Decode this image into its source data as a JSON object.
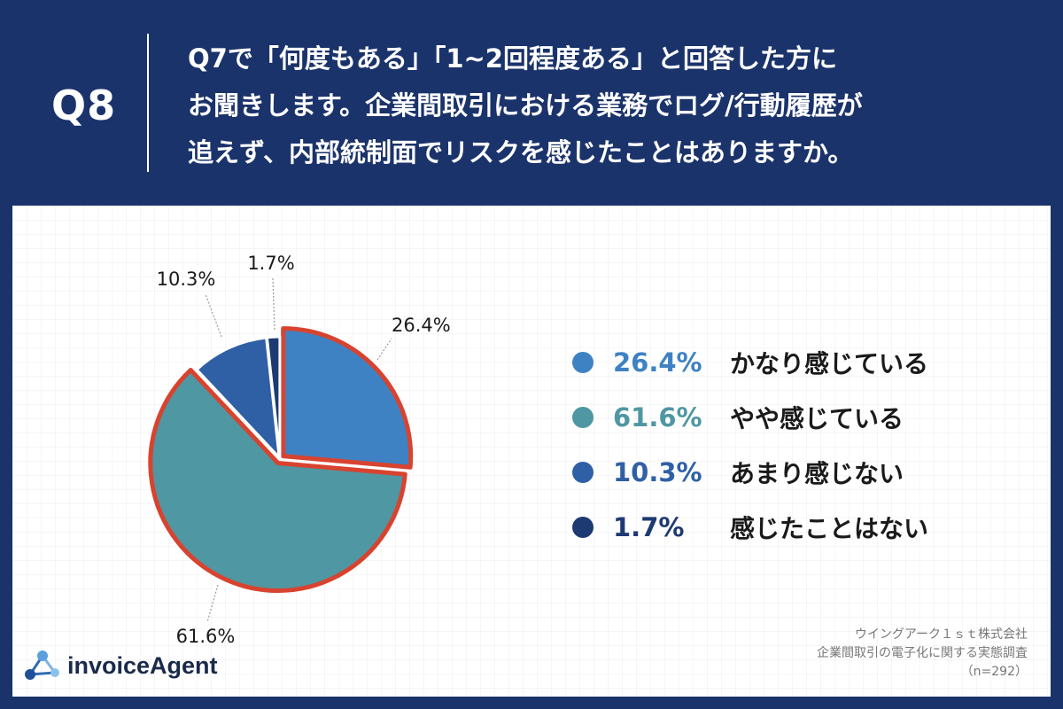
{
  "header": {
    "question_number": "Q8",
    "question_lines": [
      "Q7で「何度もある」「1~2回程度ある」と回答した方に",
      "お聞きします。企業間取引における業務でログ/行動履歴が",
      "追えず、内部統制面でリスクを感じたことはありますか。"
    ]
  },
  "chart_data": {
    "type": "pie",
    "title": "",
    "categories": [
      "かなり感じている",
      "やや感じている",
      "あまり感じない",
      "感じたことはない"
    ],
    "values": [
      26.4,
      61.6,
      10.3,
      1.7
    ],
    "unit": "%",
    "data_labels": [
      "26.4%",
      "61.6%",
      "10.3%",
      "1.7%"
    ],
    "colors": [
      "#3e82c3",
      "#4f97a2",
      "#2f60a6",
      "#1e3a73"
    ],
    "start_angle_deg": 0,
    "direction": "clockwise",
    "highlight_outline_color": "#d8432f",
    "highlight_slices": [
      0,
      1
    ],
    "legend_placement": "right"
  },
  "legend": [
    {
      "pct": "26.4%",
      "label": "かなり感じている",
      "color": "#3e82c3"
    },
    {
      "pct": "61.6%",
      "label": "やや感じている",
      "color": "#4f97a2"
    },
    {
      "pct": "10.3%",
      "label": "あまり感じない",
      "color": "#2f60a6"
    },
    {
      "pct": "1.7%",
      "label": "感じたことはない",
      "color": "#1e3a73"
    }
  ],
  "source": {
    "company": "ウイングアーク１ｓｔ株式会社",
    "survey": "企業間取引の電子化に関する実態調査",
    "n": "（n=292）"
  },
  "logo": {
    "text": "invoiceAgent",
    "icon": "invoiceagent-logo-icon"
  }
}
